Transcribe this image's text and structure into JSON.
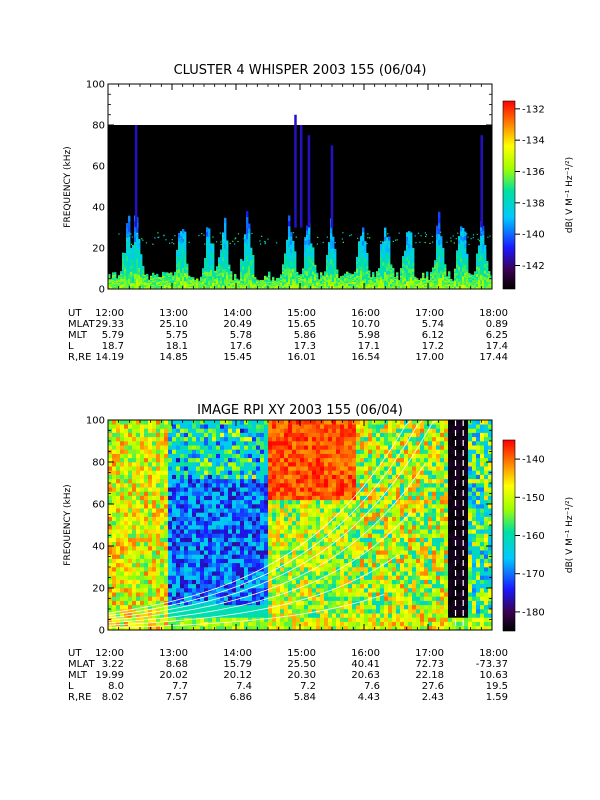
{
  "chart_data": [
    {
      "type": "heatmap",
      "title": "CLUSTER 4 WHISPER 2003 155 (06/04)",
      "ylabel": "FREQUENCY (kHz)",
      "ylim": [
        0,
        100
      ],
      "y_ticks": [
        "0",
        "20",
        "40",
        "60",
        "80",
        "100"
      ],
      "x_ticks": [
        "12:00",
        "13:00",
        "14:00",
        "15:00",
        "16:00",
        "17:00",
        "18:00"
      ],
      "data_top_frequency_khz": 80,
      "colorbar": {
        "label": "dB( V M⁻¹ Hz⁻¹/²)",
        "range": [
          -143.5,
          -131.5
        ],
        "ticks": [
          "-132",
          "-134",
          "-136",
          "-138",
          "-140",
          "-142"
        ],
        "tick_values": [
          -132,
          -134,
          -136,
          -138,
          -140,
          -142
        ]
      },
      "ephemeris": [
        {
          "label": "UT",
          "values": [
            "12:00",
            "13:00",
            "14:00",
            "15:00",
            "16:00",
            "17:00",
            "18:00"
          ]
        },
        {
          "label": "MLAT",
          "values": [
            "29.33",
            "25.10",
            "20.49",
            "15.65",
            "10.70",
            "5.74",
            "0.89"
          ]
        },
        {
          "label": "MLT",
          "values": [
            "5.79",
            "5.75",
            "5.78",
            "5.86",
            "5.98",
            "6.12",
            "6.25"
          ]
        },
        {
          "label": "L",
          "values": [
            "18.7",
            "18.1",
            "17.6",
            "17.3",
            "17.1",
            "17.2",
            "17.4"
          ]
        },
        {
          "label": "R,RE",
          "values": [
            "14.19",
            "14.85",
            "15.45",
            "16.01",
            "16.54",
            "17.00",
            "17.44"
          ]
        }
      ]
    },
    {
      "type": "heatmap",
      "title": "IMAGE RPI XY 2003 155 (06/04)",
      "ylabel": "FREQUENCY (kHz)",
      "ylim": [
        0,
        100
      ],
      "y_ticks": [
        "0",
        "20",
        "40",
        "60",
        "80",
        "100"
      ],
      "x_ticks": [
        "12:00",
        "13:00",
        "14:00",
        "15:00",
        "16:00",
        "17:00",
        "18:00"
      ],
      "colorbar": {
        "label": "dB( V M⁻¹ Hz⁻¹/²)",
        "range": [
          -185,
          -135
        ],
        "ticks": [
          "-140",
          "-150",
          "-160",
          "-170",
          "-180"
        ],
        "tick_values": [
          -140,
          -150,
          -160,
          -170,
          -180
        ]
      },
      "ephemeris": [
        {
          "label": "UT",
          "values": [
            "12:00",
            "13:00",
            "14:00",
            "15:00",
            "16:00",
            "17:00",
            "18:00"
          ]
        },
        {
          "label": "MLAT",
          "values": [
            "3.22",
            "8.68",
            "15.79",
            "25.50",
            "40.41",
            "72.73",
            "-73.37"
          ]
        },
        {
          "label": "MLT",
          "values": [
            "19.99",
            "20.02",
            "20.12",
            "20.30",
            "20.63",
            "22.18",
            "10.63"
          ]
        },
        {
          "label": "L",
          "values": [
            "8.0",
            "7.7",
            "7.4",
            "7.2",
            "7.6",
            "27.6",
            "19.5"
          ]
        },
        {
          "label": "R,RE",
          "values": [
            "8.02",
            "7.57",
            "6.86",
            "5.84",
            "4.43",
            "2.43",
            "1.59"
          ]
        }
      ]
    }
  ]
}
